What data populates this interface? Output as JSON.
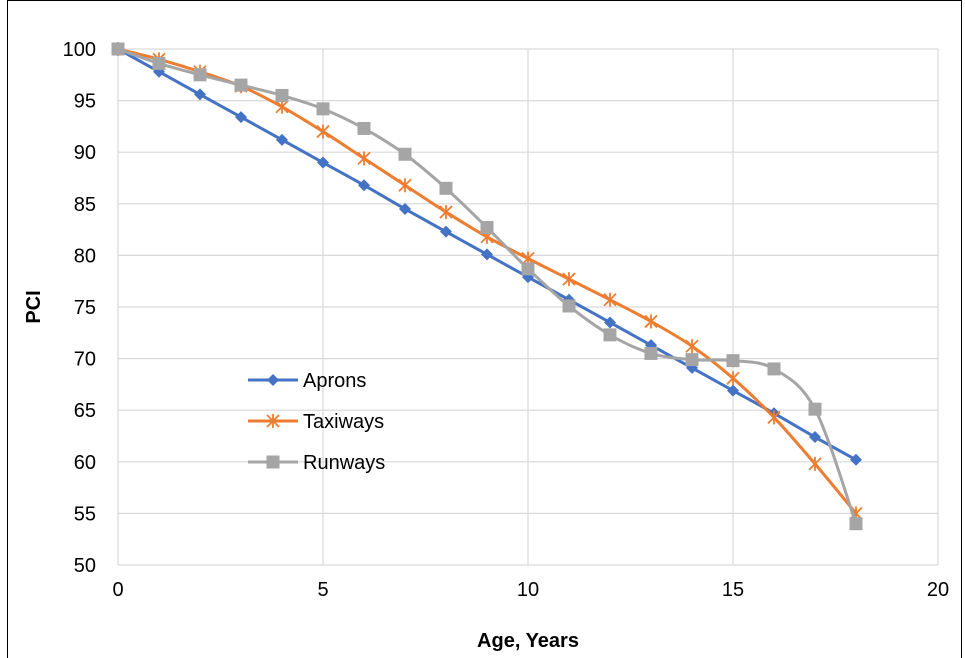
{
  "chart_data": {
    "type": "line",
    "title": "",
    "xlabel": "Age, Years",
    "ylabel": "PCI",
    "xlim": [
      0,
      20
    ],
    "ylim": [
      50,
      100
    ],
    "xticks": [
      0,
      5,
      10,
      15,
      20
    ],
    "yticks": [
      50,
      55,
      60,
      65,
      70,
      75,
      80,
      85,
      90,
      95,
      100
    ],
    "grid": true,
    "legend_position": "left-center-bottom",
    "series": [
      {
        "name": "Aprons",
        "color": "#4472C4",
        "marker": "diamond",
        "x": [
          0,
          1,
          2,
          3,
          4,
          5,
          6,
          7,
          8,
          9,
          10,
          11,
          12,
          13,
          14,
          15,
          16,
          17,
          18
        ],
        "values": [
          100,
          97.8,
          95.6,
          93.4,
          91.2,
          89.0,
          86.8,
          84.5,
          82.3,
          80.1,
          77.9,
          75.7,
          73.5,
          71.3,
          69.1,
          66.9,
          64.7,
          62.4,
          60.2
        ]
      },
      {
        "name": "Taxiways",
        "color": "#ED7D31",
        "marker": "asterisk",
        "x": [
          0,
          1,
          2,
          3,
          4,
          5,
          6,
          7,
          8,
          9,
          10,
          11,
          12,
          13,
          14,
          15,
          16,
          17,
          18
        ],
        "values": [
          100,
          99.0,
          97.8,
          96.4,
          94.4,
          92.0,
          89.4,
          86.8,
          84.2,
          81.8,
          79.7,
          77.7,
          75.7,
          73.6,
          71.2,
          68.1,
          64.3,
          59.8,
          55.0
        ]
      },
      {
        "name": "Runways",
        "color": "#A5A5A5",
        "marker": "square",
        "x": [
          0,
          1,
          2,
          3,
          4,
          5,
          6,
          7,
          8,
          9,
          10,
          11,
          12,
          13,
          14,
          15,
          16,
          17,
          18
        ],
        "values": [
          100,
          98.6,
          97.5,
          96.5,
          95.5,
          94.2,
          92.3,
          89.8,
          86.5,
          82.7,
          78.7,
          75.1,
          72.3,
          70.5,
          69.9,
          69.8,
          69.0,
          65.1,
          54.0
        ]
      }
    ]
  }
}
